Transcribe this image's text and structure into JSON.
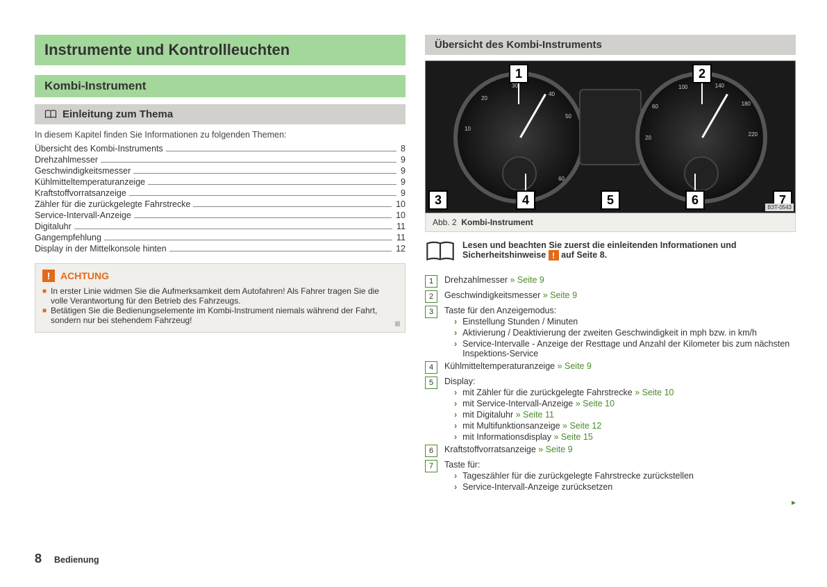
{
  "colors": {
    "green_bg": "#a4d79b",
    "grey_bg": "#d1d0cc",
    "box_bg": "#f0efeb",
    "accent_green": "#4a8b2c",
    "accent_orange": "#e36a18"
  },
  "left": {
    "h1": "Instrumente und Kontrollleuchten",
    "h2": "Kombi-Instrument",
    "h3": "Einleitung zum Thema",
    "intro": "In diesem Kapitel finden Sie Informationen zu folgenden Themen:",
    "toc": [
      {
        "label": "Übersicht des Kombi-Instruments",
        "page": "8"
      },
      {
        "label": "Drehzahlmesser",
        "page": "9"
      },
      {
        "label": "Geschwindigkeitsmesser",
        "page": "9"
      },
      {
        "label": "Kühlmitteltemperaturanzeige",
        "page": "9"
      },
      {
        "label": "Kraftstoffvorratsanzeige",
        "page": "9"
      },
      {
        "label": "Zähler für die zurückgelegte Fahrstrecke",
        "page": "10"
      },
      {
        "label": "Service-Intervall-Anzeige",
        "page": "10"
      },
      {
        "label": "Digitaluhr",
        "page": "11"
      },
      {
        "label": "Gangempfehlung",
        "page": "11"
      },
      {
        "label": "Display in der Mittelkonsole hinten",
        "page": "12"
      }
    ],
    "warning": {
      "title": "ACHTUNG",
      "bullets": [
        "In erster Linie widmen Sie die Aufmerksamkeit dem Autofahren! Als Fahrer tragen Sie die volle Verantwortung für den Betrieb des Fahrzeugs.",
        "Betätigen Sie die Bedienungselemente im Kombi-Instrument niemals während der Fahrt, sondern nur bei stehendem Fahrzeug!"
      ]
    }
  },
  "right": {
    "h3": "Übersicht des Kombi-Instruments",
    "figure": {
      "id": "B3T-0543",
      "caption_prefix": "Abb. 2",
      "caption": "Kombi-Instrument",
      "callouts": [
        "1",
        "2",
        "3",
        "4",
        "5",
        "6",
        "7"
      ]
    },
    "notice_pre": "Lesen und beachten Sie zuerst die einleitenden Informationen und Sicherheitshinweise ",
    "notice_post": " auf Seite 8.",
    "items": [
      {
        "n": "1",
        "text": "Drehzahlmesser",
        "ref": " » Seite 9"
      },
      {
        "n": "2",
        "text": "Geschwindigkeitsmesser",
        "ref": " » Seite 9"
      },
      {
        "n": "3",
        "text": "Taste für den Anzeigemodus:",
        "subs": [
          {
            "text": "Einstellung Stunden / Minuten"
          },
          {
            "text": "Aktivierung / Deaktivierung der zweiten Geschwindigkeit in mph bzw. in km/h"
          },
          {
            "text": "Service-Intervalle - Anzeige der Resttage und Anzahl der Kilometer bis zum nächsten Inspektions-Service"
          }
        ]
      },
      {
        "n": "4",
        "text": "Kühlmitteltemperaturanzeige",
        "ref": " » Seite 9"
      },
      {
        "n": "5",
        "text": "Display:",
        "subs": [
          {
            "text": "mit Zähler für die zurückgelegte Fahrstrecke",
            "ref": " » Seite 10"
          },
          {
            "text": "mit Service-Intervall-Anzeige",
            "ref": " » Seite 10"
          },
          {
            "text": "mit Digitaluhr",
            "ref": " » Seite 11"
          },
          {
            "text": "mit Multifunktionsanzeige",
            "ref": " » Seite 12"
          },
          {
            "text": "mit Informationsdisplay",
            "ref": " » Seite 15"
          }
        ]
      },
      {
        "n": "6",
        "text": "Kraftstoffvorratsanzeige",
        "ref": " » Seite 9"
      },
      {
        "n": "7",
        "text": "Taste für:",
        "subs": [
          {
            "text": "Tageszähler für die zurückgelegte Fahrstrecke zurückstellen"
          },
          {
            "text": "Service-Intervall-Anzeige zurücksetzen"
          }
        ]
      }
    ]
  },
  "footer": {
    "page": "8",
    "section": "Bedienung"
  }
}
